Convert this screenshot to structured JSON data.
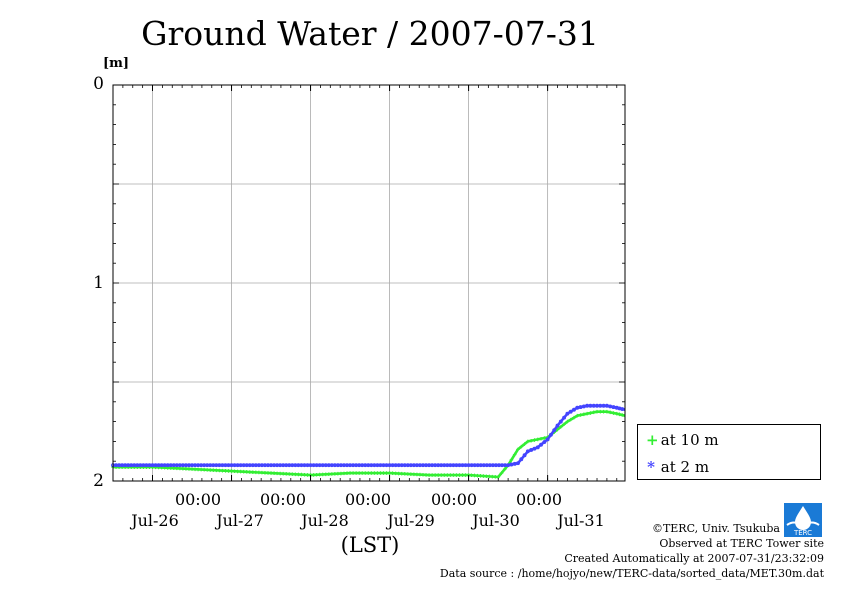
{
  "title": "Ground Water / 2007-07-31",
  "ylabel": "[m]",
  "xlabel": "(LST)",
  "chart_data": {
    "type": "line",
    "title": "Ground Water / 2007-07-31",
    "ylabel": "[m]",
    "xlabel": "(LST)",
    "y_inverted": true,
    "ylim": [
      0,
      2
    ],
    "yticks": [
      "0",
      "1",
      "2"
    ],
    "xlim": [
      "2007-07-25T12:00",
      "2007-07-31T23:30"
    ],
    "xticks": [
      {
        "time": "00:00",
        "day": "Jul-26"
      },
      {
        "time": "00:00",
        "day": "Jul-27"
      },
      {
        "time": "00:00",
        "day": "Jul-28"
      },
      {
        "time": "00:00",
        "day": "Jul-29"
      },
      {
        "time": "00:00",
        "day": "Jul-30"
      },
      {
        "time": "00:00",
        "day": "Jul-31"
      }
    ],
    "grid": true,
    "legend_position": "bottom-right, outside",
    "series": [
      {
        "name": "at 10 m",
        "color": "#33ee33",
        "marker": "+",
        "points": [
          [
            "2007-07-25T12:00",
            1.93
          ],
          [
            "2007-07-26T00:00",
            1.93
          ],
          [
            "2007-07-26T12:00",
            1.94
          ],
          [
            "2007-07-27T00:00",
            1.95
          ],
          [
            "2007-07-27T12:00",
            1.96
          ],
          [
            "2007-07-28T00:00",
            1.97
          ],
          [
            "2007-07-28T12:00",
            1.96
          ],
          [
            "2007-07-29T00:00",
            1.96
          ],
          [
            "2007-07-29T12:00",
            1.97
          ],
          [
            "2007-07-30T00:00",
            1.97
          ],
          [
            "2007-07-30T09:00",
            1.98
          ],
          [
            "2007-07-30T12:00",
            1.92
          ],
          [
            "2007-07-30T15:00",
            1.84
          ],
          [
            "2007-07-30T18:00",
            1.8
          ],
          [
            "2007-07-30T21:00",
            1.79
          ],
          [
            "2007-07-31T00:00",
            1.78
          ],
          [
            "2007-07-31T03:00",
            1.74
          ],
          [
            "2007-07-31T06:00",
            1.7
          ],
          [
            "2007-07-31T09:00",
            1.67
          ],
          [
            "2007-07-31T12:00",
            1.66
          ],
          [
            "2007-07-31T15:00",
            1.65
          ],
          [
            "2007-07-31T18:00",
            1.65
          ],
          [
            "2007-07-31T21:00",
            1.66
          ],
          [
            "2007-07-31T23:30",
            1.67
          ]
        ]
      },
      {
        "name": "at 2 m",
        "color": "#4444ff",
        "marker": "*",
        "points": [
          [
            "2007-07-25T12:00",
            1.92
          ],
          [
            "2007-07-26T00:00",
            1.92
          ],
          [
            "2007-07-26T12:00",
            1.92
          ],
          [
            "2007-07-27T00:00",
            1.92
          ],
          [
            "2007-07-27T12:00",
            1.92
          ],
          [
            "2007-07-28T00:00",
            1.92
          ],
          [
            "2007-07-28T12:00",
            1.92
          ],
          [
            "2007-07-29T00:00",
            1.92
          ],
          [
            "2007-07-29T12:00",
            1.92
          ],
          [
            "2007-07-30T00:00",
            1.92
          ],
          [
            "2007-07-30T12:00",
            1.92
          ],
          [
            "2007-07-30T15:00",
            1.91
          ],
          [
            "2007-07-30T18:00",
            1.85
          ],
          [
            "2007-07-30T21:00",
            1.83
          ],
          [
            "2007-07-31T00:00",
            1.79
          ],
          [
            "2007-07-31T03:00",
            1.72
          ],
          [
            "2007-07-31T06:00",
            1.66
          ],
          [
            "2007-07-31T09:00",
            1.63
          ],
          [
            "2007-07-31T12:00",
            1.62
          ],
          [
            "2007-07-31T15:00",
            1.62
          ],
          [
            "2007-07-31T18:00",
            1.62
          ],
          [
            "2007-07-31T21:00",
            1.63
          ],
          [
            "2007-07-31T23:30",
            1.64
          ]
        ]
      }
    ]
  },
  "credits": {
    "copyright": "©TERC, Univ. Tsukuba",
    "observed": "Observed at TERC Tower site",
    "created": "Created Automatically at 2007-07-31/23:32:09",
    "source": "Data source : /home/hojyo/new/TERC-data/sorted_data/MET.30m.dat"
  },
  "logo_text": "TERC"
}
